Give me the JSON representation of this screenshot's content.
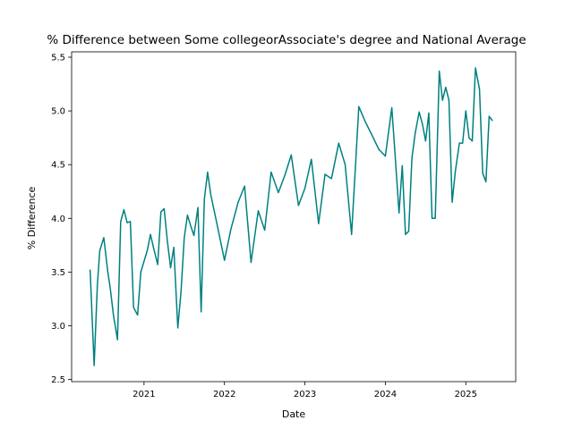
{
  "chart_data": {
    "type": "line",
    "title": "% Difference between Some collegeorAssociate's degree and National Average",
    "xlabel": "Date",
    "ylabel": "% Difference",
    "xlim": [
      2020.1,
      2025.62
    ],
    "ylim": [
      2.48,
      5.55
    ],
    "xticks": [
      {
        "value": 2021,
        "label": "2021"
      },
      {
        "value": 2022,
        "label": "2022"
      },
      {
        "value": 2023,
        "label": "2023"
      },
      {
        "value": 2024,
        "label": "2024"
      },
      {
        "value": 2025,
        "label": "2025"
      }
    ],
    "yticks": [
      {
        "value": 2.5,
        "label": "2.5"
      },
      {
        "value": 3.0,
        "label": "3.0"
      },
      {
        "value": 3.5,
        "label": "3.5"
      },
      {
        "value": 4.0,
        "label": "4.0"
      },
      {
        "value": 4.5,
        "label": "4.5"
      },
      {
        "value": 5.0,
        "label": "5.0"
      },
      {
        "value": 5.5,
        "label": "5.5"
      }
    ],
    "grid": false,
    "series": [
      {
        "name": "% Difference",
        "color": "#008080",
        "x": [
          2020.33,
          2020.38,
          2020.42,
          2020.45,
          2020.5,
          2020.55,
          2020.58,
          2020.62,
          2020.67,
          2020.71,
          2020.75,
          2020.79,
          2020.83,
          2020.87,
          2020.92,
          2020.96,
          2021.0,
          2021.04,
          2021.08,
          2021.12,
          2021.17,
          2021.21,
          2021.25,
          2021.29,
          2021.33,
          2021.37,
          2021.42,
          2021.46,
          2021.5,
          2021.54,
          2021.58,
          2021.62,
          2021.67,
          2021.71,
          2021.75,
          2021.79,
          2021.83,
          2021.92,
          2022.0,
          2022.08,
          2022.17,
          2022.25,
          2022.33,
          2022.42,
          2022.5,
          2022.58,
          2022.67,
          2022.75,
          2022.83,
          2022.92,
          2023.0,
          2023.08,
          2023.17,
          2023.25,
          2023.33,
          2023.42,
          2023.5,
          2023.58,
          2023.67,
          2023.75,
          2023.83,
          2023.92,
          2024.0,
          2024.08,
          2024.12,
          2024.17,
          2024.21,
          2024.25,
          2024.29,
          2024.33,
          2024.37,
          2024.42,
          2024.46,
          2024.5,
          2024.54,
          2024.58,
          2024.62,
          2024.67,
          2024.71,
          2024.75,
          2024.79,
          2024.83,
          2024.87,
          2024.92,
          2024.96,
          2025.0,
          2025.04,
          2025.08,
          2025.12,
          2025.17,
          2025.21,
          2025.25,
          2025.29,
          2025.33
        ],
        "values": [
          3.52,
          2.63,
          3.38,
          3.7,
          3.82,
          3.5,
          3.35,
          3.1,
          2.87,
          3.97,
          4.08,
          3.96,
          3.97,
          3.17,
          3.1,
          3.5,
          3.6,
          3.7,
          3.85,
          3.72,
          3.57,
          4.06,
          4.09,
          3.79,
          3.54,
          3.73,
          2.98,
          3.32,
          3.82,
          4.03,
          3.93,
          3.84,
          4.1,
          3.13,
          4.18,
          4.43,
          4.22,
          3.9,
          3.61,
          3.9,
          4.15,
          4.3,
          3.59,
          4.07,
          3.89,
          4.43,
          4.24,
          4.4,
          4.59,
          4.12,
          4.28,
          4.55,
          3.95,
          4.41,
          4.37,
          4.7,
          4.5,
          3.85,
          5.04,
          4.9,
          4.78,
          4.64,
          4.58,
          5.03,
          4.6,
          4.05,
          4.49,
          3.85,
          3.88,
          4.56,
          4.79,
          4.99,
          4.88,
          4.72,
          4.98,
          4.0,
          4.0,
          5.37,
          5.1,
          5.22,
          5.1,
          4.15,
          4.44,
          4.7,
          4.7,
          5.0,
          4.75,
          4.72,
          5.4,
          5.2,
          4.42,
          4.34,
          4.95,
          4.91
        ]
      }
    ]
  }
}
